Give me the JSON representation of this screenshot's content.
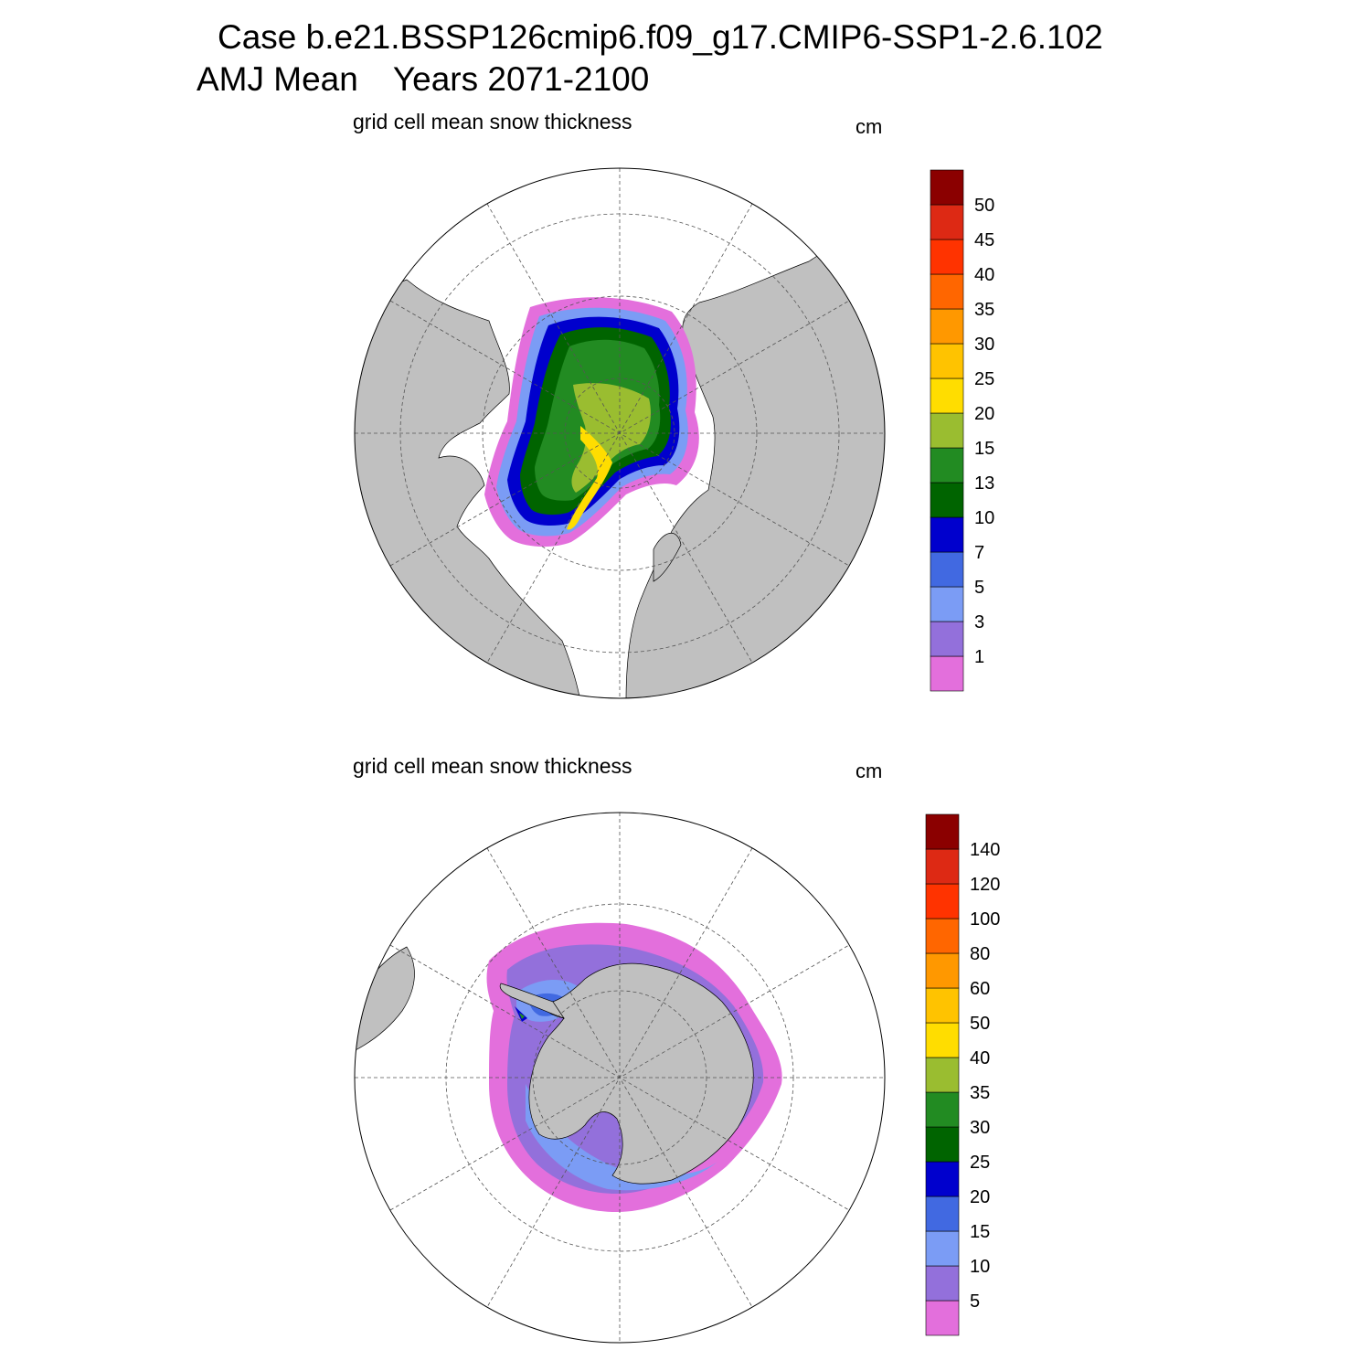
{
  "title": {
    "case": "Case b.e21.BSSP126cmip6.f09_g17.CMIP6-SSP1-2.6.102",
    "season": "AMJ Mean",
    "years": "Years 2071-2100"
  },
  "colors": {
    "land": "#c0c0c0",
    "ocean": "#ffffff",
    "palette": [
      "#e36fdc",
      "#9370db",
      "#7b9cf5",
      "#4169e1",
      "#0000cd",
      "#006400",
      "#228b22",
      "#9abd30",
      "#ffdd00",
      "#ffc300",
      "#ff9800",
      "#ff6600",
      "#ff3300",
      "#dd2914",
      "#8b0000"
    ]
  },
  "panels": [
    {
      "hemisphere": "north",
      "title": "grid cell mean snow thickness",
      "units": "cm",
      "colorbar_levels": [
        "1",
        "3",
        "5",
        "7",
        "10",
        "13",
        "15",
        "20",
        "25",
        "30",
        "35",
        "40",
        "45",
        "50"
      ]
    },
    {
      "hemisphere": "south",
      "title": "grid cell mean snow thickness",
      "units": "cm",
      "colorbar_levels": [
        "5",
        "10",
        "15",
        "20",
        "25",
        "30",
        "35",
        "40",
        "50",
        "60",
        "80",
        "100",
        "120",
        "140"
      ]
    }
  ]
}
